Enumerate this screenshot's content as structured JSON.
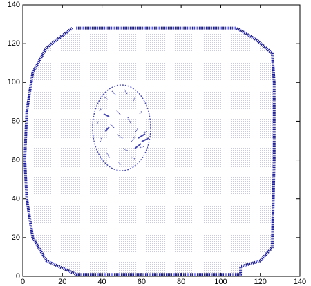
{
  "chart_data": {
    "type": "line",
    "xlim": [
      0,
      140
    ],
    "ylim": [
      0,
      140
    ],
    "xticks": [
      0,
      20,
      40,
      60,
      80,
      100,
      120,
      140
    ],
    "yticks": [
      0,
      20,
      40,
      60,
      80,
      100,
      120,
      140
    ],
    "series": [
      {
        "color": "#1c1c96",
        "x": [
          27,
          108,
          118,
          126,
          127,
          127,
          126,
          120,
          110,
          110,
          27,
          12,
          5,
          2,
          1,
          2,
          5,
          12,
          25
        ],
        "values": [
          128,
          128,
          122,
          115,
          100,
          60,
          15,
          8,
          5,
          1,
          1,
          8,
          20,
          40,
          60,
          85,
          105,
          118,
          128
        ]
      }
    ]
  }
}
